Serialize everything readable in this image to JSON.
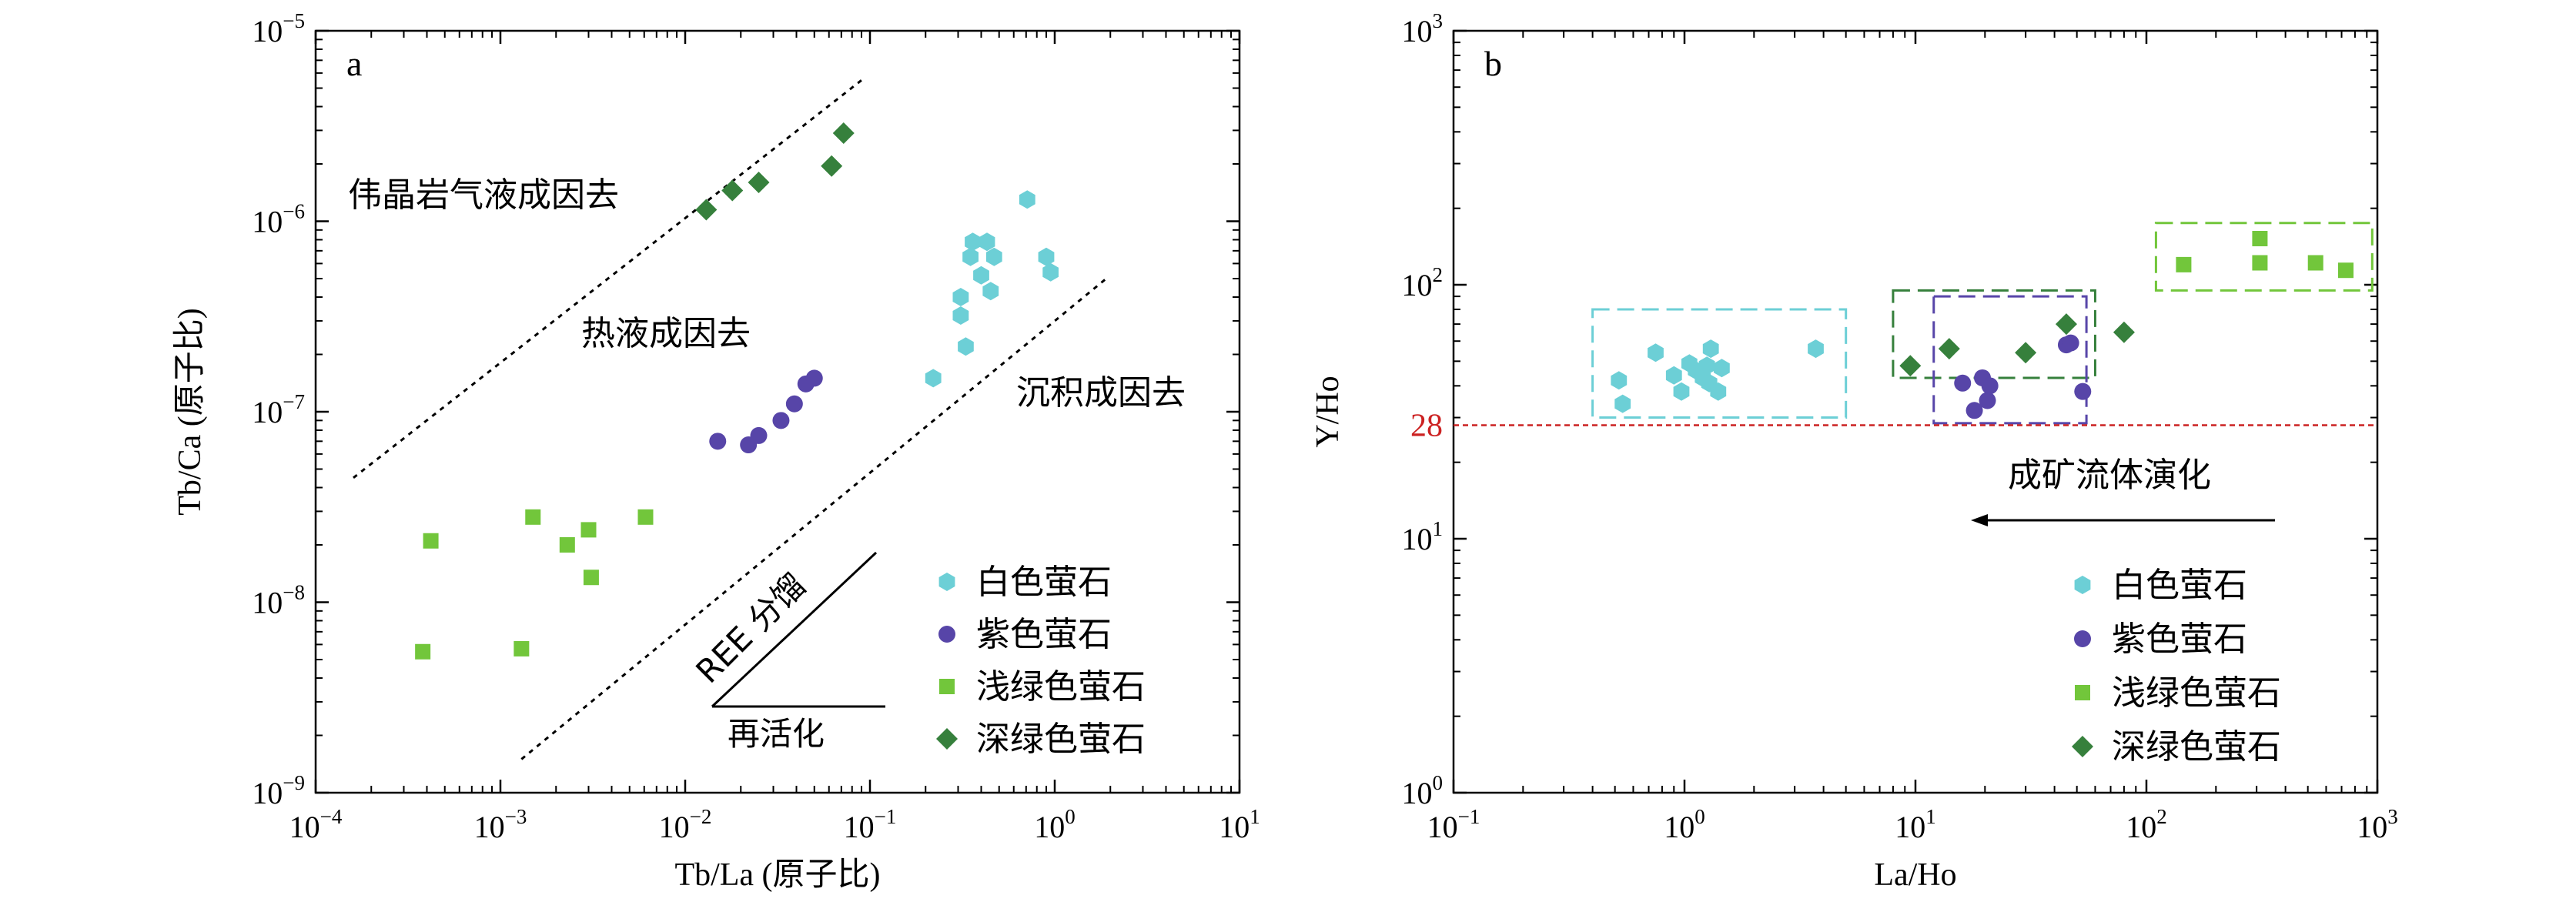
{
  "chart_data": [
    {
      "type": "scatter",
      "panel_label": "a",
      "xlabel": "Tb/La (原子比)",
      "ylabel": "Tb/Ca (原子比)",
      "x_scale": "log",
      "y_scale": "log",
      "xlim": [
        0.0001,
        10
      ],
      "ylim": [
        1e-09,
        1e-05
      ],
      "x_ticks": [
        {
          "base": "10",
          "exp": "−4"
        },
        {
          "base": "10",
          "exp": "−3"
        },
        {
          "base": "10",
          "exp": "−2"
        },
        {
          "base": "10",
          "exp": "−1"
        },
        {
          "base": "10",
          "exp": "0"
        },
        {
          "base": "10",
          "exp": "1"
        }
      ],
      "y_ticks": [
        {
          "base": "10",
          "exp": "−9"
        },
        {
          "base": "10",
          "exp": "−8"
        },
        {
          "base": "10",
          "exp": "−7"
        },
        {
          "base": "10",
          "exp": "−6"
        },
        {
          "base": "10",
          "exp": "−5"
        }
      ],
      "legend_position": "bottom-right",
      "series": [
        {
          "name": "白色萤石",
          "marker": "hexagon",
          "color": "#6ccfd6",
          "points": [
            [
              0.22,
              1.5e-07
            ],
            [
              0.33,
              2.2e-07
            ],
            [
              0.31,
              3.2e-07
            ],
            [
              0.31,
              4e-07
            ],
            [
              0.4,
              5.2e-07
            ],
            [
              0.45,
              4.3e-07
            ],
            [
              0.35,
              6.5e-07
            ],
            [
              0.47,
              6.5e-07
            ],
            [
              0.36,
              7.8e-07
            ],
            [
              0.43,
              7.8e-07
            ],
            [
              0.71,
              1.3e-06
            ],
            [
              0.9,
              6.5e-07
            ],
            [
              0.95,
              5.4e-07
            ]
          ]
        },
        {
          "name": "紫色萤石",
          "marker": "circle",
          "color": "#5745a8",
          "points": [
            [
              0.015,
              7e-08
            ],
            [
              0.022,
              6.7e-08
            ],
            [
              0.025,
              7.5e-08
            ],
            [
              0.033,
              9e-08
            ],
            [
              0.039,
              1.1e-07
            ],
            [
              0.045,
              1.4e-07
            ],
            [
              0.05,
              1.5e-07
            ]
          ]
        },
        {
          "name": "浅绿色萤石",
          "marker": "square",
          "color": "#72c63b",
          "points": [
            [
              0.00038,
              5.5e-09
            ],
            [
              0.00042,
              2.1e-08
            ],
            [
              0.0013,
              5.7e-09
            ],
            [
              0.0015,
              2.8e-08
            ],
            [
              0.0023,
              2e-08
            ],
            [
              0.003,
              2.4e-08
            ],
            [
              0.0031,
              1.35e-08
            ],
            [
              0.0061,
              2.8e-08
            ]
          ]
        },
        {
          "name": "深绿色萤石",
          "marker": "diamond",
          "color": "#36803c",
          "points": [
            [
              0.013,
              1.15e-06
            ],
            [
              0.018,
              1.45e-06
            ],
            [
              0.025,
              1.6e-06
            ],
            [
              0.062,
              1.95e-06
            ],
            [
              0.072,
              2.9e-06
            ]
          ]
        }
      ],
      "guide_lines": [
        {
          "from": [
            0.00016,
            4.5e-08
          ],
          "to": [
            0.09,
            5.5e-06
          ]
        },
        {
          "from": [
            0.0013,
            1.5e-09
          ],
          "to": [
            1.9,
            5e-07
          ]
        }
      ],
      "field_labels": [
        "伟晶岩气液成因去",
        "热液成因去",
        "沉积成因去"
      ],
      "trend_labels": [
        "REE 分馏",
        "再活化"
      ]
    },
    {
      "type": "scatter",
      "panel_label": "b",
      "xlabel": "La/Ho",
      "ylabel": "Y/Ho",
      "x_scale": "log",
      "y_scale": "log",
      "xlim": [
        0.1,
        1000
      ],
      "ylim": [
        1,
        1000
      ],
      "x_ticks": [
        {
          "base": "10",
          "exp": "−1"
        },
        {
          "base": "10",
          "exp": "0"
        },
        {
          "base": "10",
          "exp": "1"
        },
        {
          "base": "10",
          "exp": "2"
        },
        {
          "base": "10",
          "exp": "3"
        }
      ],
      "y_ticks": [
        {
          "base": "10",
          "exp": "0"
        },
        {
          "base": "10",
          "exp": "1"
        },
        {
          "base": "10",
          "exp": "2"
        },
        {
          "base": "10",
          "exp": "3"
        }
      ],
      "reference_line": {
        "y": 28,
        "label": "28",
        "color": "#cc2222"
      },
      "trend_label": "成矿流体演化",
      "legend_position": "bottom-right",
      "series": [
        {
          "name": "白色萤石",
          "marker": "hexagon",
          "color": "#6ccfd6",
          "points": [
            [
              0.52,
              42
            ],
            [
              0.54,
              34
            ],
            [
              0.75,
              54
            ],
            [
              0.9,
              44
            ],
            [
              0.97,
              38
            ],
            [
              1.05,
              49
            ],
            [
              1.12,
              46
            ],
            [
              1.2,
              43
            ],
            [
              1.25,
              48
            ],
            [
              1.28,
              41
            ],
            [
              1.3,
              56
            ],
            [
              1.4,
              38
            ],
            [
              1.45,
              47
            ],
            [
              3.7,
              56
            ]
          ]
        },
        {
          "name": "紫色萤石",
          "marker": "circle",
          "color": "#5745a8",
          "points": [
            [
              16,
              41
            ],
            [
              18,
              32
            ],
            [
              19.5,
              43
            ],
            [
              20.5,
              35
            ],
            [
              21,
              40
            ],
            [
              45,
              58
            ],
            [
              47,
              59
            ],
            [
              53,
              38
            ]
          ]
        },
        {
          "name": "浅绿色萤石",
          "marker": "square",
          "color": "#72c63b",
          "points": [
            [
              145,
              120
            ],
            [
              310,
              122
            ],
            [
              310,
              152
            ],
            [
              540,
              122
            ],
            [
              730,
              114
            ]
          ]
        },
        {
          "name": "深绿色萤石",
          "marker": "diamond",
          "color": "#36803c",
          "points": [
            [
              9.5,
              48
            ],
            [
              14,
              56
            ],
            [
              30,
              54
            ],
            [
              45,
              70
            ],
            [
              80,
              65
            ]
          ]
        }
      ],
      "group_boxes": [
        {
          "x": [
            0.4,
            5
          ],
          "y": [
            30,
            80
          ],
          "color": "#6ccfd6"
        },
        {
          "x": [
            8,
            60
          ],
          "y": [
            43,
            95
          ],
          "color": "#36803c"
        },
        {
          "x": [
            12,
            55
          ],
          "y": [
            28.5,
            90
          ],
          "color": "#5745a8"
        },
        {
          "x": [
            110,
            950
          ],
          "y": [
            95,
            175
          ],
          "color": "#72c63b"
        }
      ]
    }
  ]
}
